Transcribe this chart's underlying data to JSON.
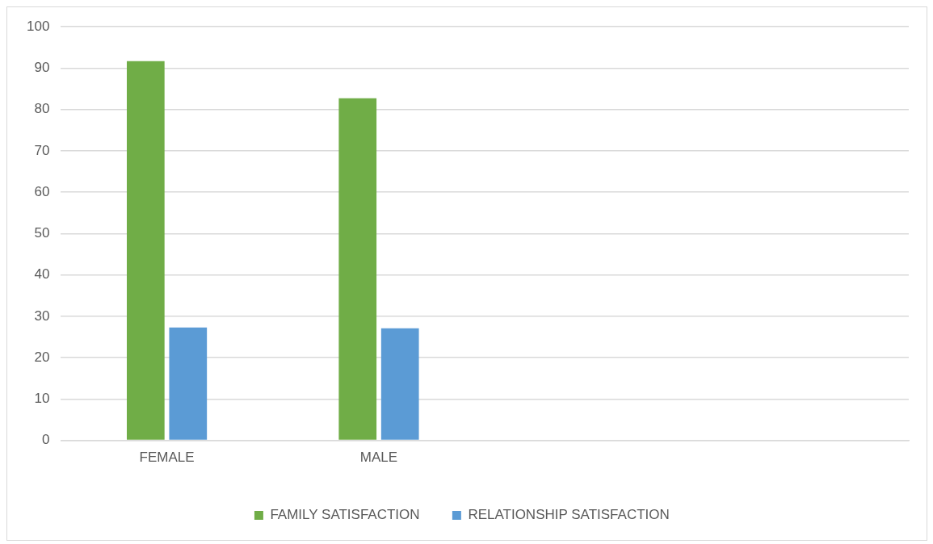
{
  "chart_data": {
    "type": "bar",
    "categories": [
      "FEMALE",
      "MALE",
      null,
      null
    ],
    "series": [
      {
        "name": "FAMILY SATISFACTION",
        "color": "#70ad47",
        "values": [
          91.7,
          82.7,
          null,
          null
        ]
      },
      {
        "name": "RELATIONSHIP SATISFACTION",
        "color": "#5b9bd5",
        "values": [
          27.3,
          27.1,
          null,
          null
        ]
      }
    ],
    "ylim": [
      0,
      100
    ],
    "yticks": [
      0,
      10,
      20,
      30,
      40,
      50,
      60,
      70,
      80,
      90,
      100
    ],
    "grid": "y",
    "legend": "bottom"
  }
}
